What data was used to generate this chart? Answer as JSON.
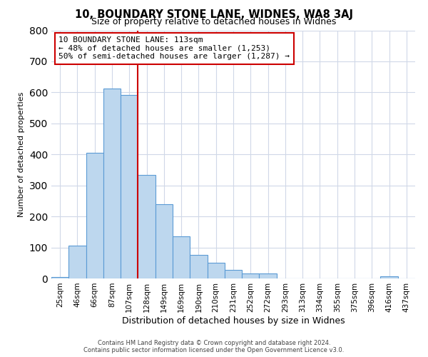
{
  "title": "10, BOUNDARY STONE LANE, WIDNES, WA8 3AJ",
  "subtitle": "Size of property relative to detached houses in Widnes",
  "xlabel": "Distribution of detached houses by size in Widnes",
  "ylabel": "Number of detached properties",
  "bar_labels": [
    "25sqm",
    "46sqm",
    "66sqm",
    "87sqm",
    "107sqm",
    "128sqm",
    "149sqm",
    "169sqm",
    "190sqm",
    "210sqm",
    "231sqm",
    "252sqm",
    "272sqm",
    "293sqm",
    "313sqm",
    "334sqm",
    "355sqm",
    "375sqm",
    "396sqm",
    "416sqm",
    "437sqm"
  ],
  "bar_values": [
    5,
    107,
    405,
    612,
    592,
    333,
    240,
    136,
    76,
    50,
    27,
    15,
    16,
    0,
    0,
    0,
    0,
    0,
    0,
    8,
    0
  ],
  "bar_color": "#bdd7ee",
  "bar_edge_color": "#5b9bd5",
  "property_label": "10 BOUNDARY STONE LANE: 113sqm",
  "annotation_line1": "← 48% of detached houses are smaller (1,253)",
  "annotation_line2": "50% of semi-detached houses are larger (1,287) →",
  "ylim": [
    0,
    800
  ],
  "yticks": [
    0,
    100,
    200,
    300,
    400,
    500,
    600,
    700,
    800
  ],
  "bar_width": 1.0,
  "vline_color": "#cc0000",
  "box_edge_color": "#cc0000",
  "footer_line1": "Contains HM Land Registry data © Crown copyright and database right 2024.",
  "footer_line2": "Contains public sector information licensed under the Open Government Licence v3.0.",
  "background_color": "#ffffff",
  "grid_color": "#d0d8e8",
  "vline_x": 5.0
}
